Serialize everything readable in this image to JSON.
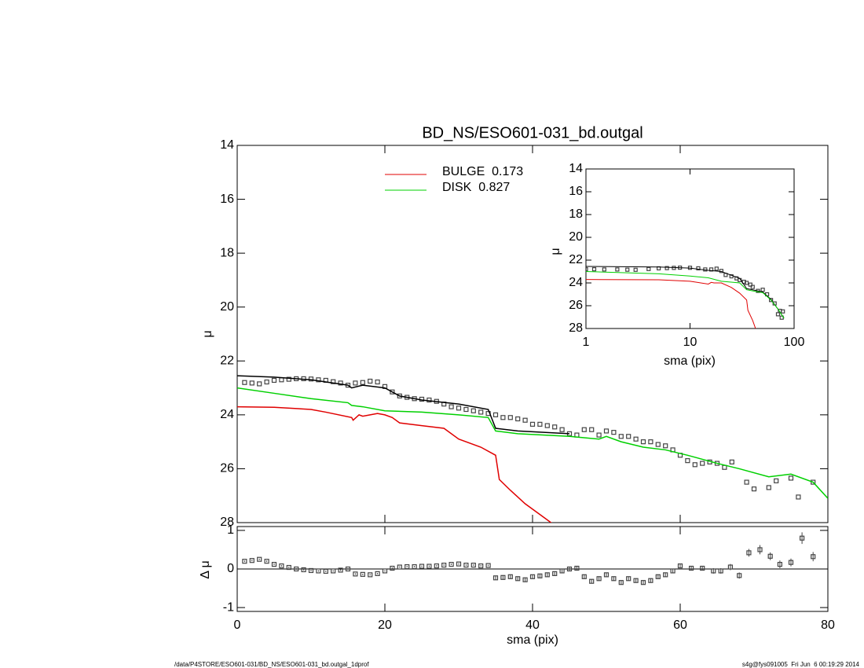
{
  "chart_data": [
    {
      "type": "line",
      "title": "BD_NS/ESO601-031_bd.outgal",
      "ylabel": "μ",
      "ylim": [
        28,
        14
      ],
      "yticks": [
        14,
        16,
        18,
        20,
        22,
        24,
        26,
        28
      ],
      "series": [
        {
          "style": "points",
          "color": "#444444",
          "x": [
            1,
            2,
            3,
            4,
            5,
            6,
            7,
            8,
            9,
            10,
            11,
            12,
            13,
            14,
            15,
            16,
            17,
            18,
            19,
            20,
            21,
            22,
            23,
            24,
            25,
            26,
            27,
            28,
            29,
            30,
            31,
            32,
            33,
            34,
            35,
            36,
            37,
            38,
            39,
            40,
            41,
            42,
            43,
            44,
            45,
            46,
            47,
            48,
            49,
            50,
            51,
            52,
            53,
            54,
            55,
            56,
            57,
            58,
            59,
            60,
            61,
            62,
            63,
            64,
            65,
            66,
            67,
            69,
            70,
            72,
            73,
            75,
            76,
            78
          ],
          "values": [
            22.8,
            22.82,
            22.85,
            22.78,
            22.72,
            22.7,
            22.68,
            22.66,
            22.66,
            22.67,
            22.7,
            22.72,
            22.77,
            22.82,
            22.9,
            22.82,
            22.8,
            22.75,
            22.78,
            22.95,
            23.15,
            23.3,
            23.35,
            23.4,
            23.42,
            23.45,
            23.5,
            23.6,
            23.7,
            23.75,
            23.8,
            23.85,
            23.9,
            23.95,
            24.0,
            24.1,
            24.1,
            24.15,
            24.2,
            24.35,
            24.35,
            24.4,
            24.45,
            24.55,
            24.7,
            24.75,
            24.55,
            24.55,
            24.75,
            24.6,
            24.65,
            24.8,
            24.8,
            24.9,
            25.0,
            25.0,
            25.1,
            25.15,
            25.3,
            25.5,
            25.7,
            25.85,
            25.8,
            25.75,
            25.8,
            25.95,
            25.75,
            26.5,
            26.75,
            26.7,
            26.45,
            26.35,
            27.05,
            26.5
          ]
        },
        {
          "style": "line",
          "color": "#000000",
          "x": [
            0,
            5,
            10,
            15,
            15.5,
            17,
            20,
            22,
            25,
            30,
            34,
            35,
            38,
            45
          ],
          "values": [
            22.55,
            22.6,
            22.7,
            22.9,
            23.0,
            22.9,
            23.0,
            23.3,
            23.45,
            23.6,
            23.8,
            24.5,
            24.6,
            24.7
          ]
        },
        {
          "style": "line",
          "color": "#e00000",
          "name": "BULGE  0.173",
          "x": [
            0,
            5,
            10,
            12,
            15.5,
            15.7,
            16.5,
            17,
            18,
            19,
            20,
            21,
            22,
            25,
            28,
            30,
            33,
            35,
            35.5,
            37,
            39,
            41.5,
            43
          ],
          "values": [
            23.7,
            23.72,
            23.8,
            23.9,
            24.1,
            24.2,
            24.0,
            24.05,
            24.0,
            23.95,
            24.0,
            24.1,
            24.3,
            24.4,
            24.5,
            24.9,
            25.2,
            25.5,
            26.4,
            26.8,
            27.3,
            27.8,
            28.1
          ]
        },
        {
          "style": "line",
          "color": "#00d000",
          "name": "DISK  0.827",
          "x": [
            0,
            5,
            10,
            15,
            15.5,
            17,
            20,
            25,
            30,
            34,
            35,
            38,
            45,
            49,
            50,
            52,
            55,
            58,
            61,
            65,
            68,
            72,
            75,
            78,
            80
          ],
          "values": [
            23.0,
            23.2,
            23.4,
            23.55,
            23.65,
            23.7,
            23.85,
            23.9,
            24.0,
            24.1,
            24.6,
            24.7,
            24.8,
            24.9,
            24.8,
            25.0,
            25.2,
            25.3,
            25.5,
            25.8,
            26.0,
            26.3,
            26.2,
            26.5,
            27.1
          ]
        }
      ]
    },
    {
      "type": "scatter",
      "xlabel": "sma (pix)",
      "ylabel": "Δ μ",
      "xlim": [
        0,
        80
      ],
      "xticks": [
        0,
        20,
        40,
        60,
        80
      ],
      "ylim": [
        -1.1,
        1.1
      ],
      "yticks": [
        -1,
        0,
        1
      ],
      "series": [
        {
          "style": "points",
          "color": "#444444",
          "x": [
            1,
            2,
            3,
            4,
            5,
            6,
            7,
            8,
            9,
            10,
            11,
            12,
            13,
            14,
            15,
            16,
            17,
            18,
            19,
            20,
            21,
            22,
            23,
            24,
            25,
            26,
            27,
            28,
            29,
            30,
            31,
            32,
            33,
            34,
            35,
            36,
            37,
            38,
            39,
            40,
            41,
            42,
            43,
            44,
            45,
            46,
            47,
            48,
            49,
            50,
            51,
            52,
            53,
            54,
            55,
            56,
            57,
            58,
            59,
            60,
            61.5,
            63,
            64.5,
            65.5,
            66.8,
            68,
            69.3,
            70.8,
            72.2,
            73.5,
            75,
            76.5,
            78
          ],
          "values": [
            0.2,
            0.22,
            0.25,
            0.2,
            0.12,
            0.08,
            0.04,
            0.0,
            -0.02,
            -0.04,
            -0.05,
            -0.06,
            -0.05,
            -0.03,
            0.0,
            -0.13,
            -0.14,
            -0.15,
            -0.12,
            -0.05,
            0.02,
            0.05,
            0.06,
            0.06,
            0.07,
            0.07,
            0.08,
            0.1,
            0.12,
            0.13,
            0.1,
            0.1,
            0.08,
            0.09,
            -0.23,
            -0.22,
            -0.2,
            -0.25,
            -0.28,
            -0.2,
            -0.18,
            -0.15,
            -0.12,
            -0.05,
            0.0,
            0.02,
            -0.2,
            -0.32,
            -0.25,
            -0.15,
            -0.25,
            -0.35,
            -0.25,
            -0.3,
            -0.35,
            -0.3,
            -0.2,
            -0.15,
            -0.05,
            0.08,
            0.02,
            0.02,
            -0.05,
            -0.05,
            0.05,
            -0.17,
            0.42,
            0.5,
            0.33,
            0.12,
            0.17,
            0.8,
            0.32
          ],
          "errors": [
            0.02,
            0.02,
            0.02,
            0.02,
            0.02,
            0.02,
            0.02,
            0.02,
            0.02,
            0.02,
            0.02,
            0.02,
            0.02,
            0.02,
            0.02,
            0.02,
            0.02,
            0.02,
            0.02,
            0.02,
            0.02,
            0.02,
            0.02,
            0.02,
            0.02,
            0.02,
            0.02,
            0.02,
            0.02,
            0.02,
            0.02,
            0.02,
            0.02,
            0.02,
            0.05,
            0.05,
            0.05,
            0.05,
            0.05,
            0.05,
            0.05,
            0.05,
            0.05,
            0.05,
            0.05,
            0.05,
            0.05,
            0.05,
            0.05,
            0.05,
            0.05,
            0.05,
            0.05,
            0.05,
            0.05,
            0.05,
            0.05,
            0.05,
            0.05,
            0.05,
            0.06,
            0.06,
            0.07,
            0.07,
            0.08,
            0.08,
            0.1,
            0.12,
            0.1,
            0.1,
            0.1,
            0.15,
            0.12
          ]
        }
      ]
    },
    {
      "type": "line",
      "xlabel": "sma (pix)",
      "ylabel": "μ",
      "xlog": true,
      "xlim": [
        1,
        100
      ],
      "xticks": [
        1,
        10,
        100
      ],
      "ylim": [
        28,
        14
      ],
      "yticks": [
        14,
        16,
        18,
        20,
        22,
        24,
        26,
        28
      ],
      "series": [
        {
          "style": "points",
          "color": "#444444",
          "x": [
            1,
            1.2,
            1.5,
            2,
            2.5,
            3,
            4,
            5,
            6,
            7,
            8,
            10,
            12,
            14,
            16,
            18,
            20,
            22,
            25,
            28,
            30,
            33,
            35,
            38,
            40,
            45,
            50,
            55,
            60,
            65,
            70,
            73,
            76,
            78
          ],
          "values": [
            22.8,
            22.8,
            22.82,
            22.82,
            22.84,
            22.85,
            22.78,
            22.72,
            22.7,
            22.68,
            22.66,
            22.67,
            22.72,
            22.82,
            22.82,
            22.75,
            22.95,
            23.3,
            23.42,
            23.6,
            23.75,
            23.9,
            24.0,
            24.15,
            24.35,
            24.7,
            24.6,
            25.0,
            25.5,
            25.8,
            26.75,
            26.45,
            27.05,
            26.5
          ]
        },
        {
          "style": "line",
          "color": "#000000",
          "x": [
            1,
            5,
            10,
            15,
            20,
            30,
            35,
            40,
            50,
            60,
            70,
            80
          ],
          "values": [
            22.55,
            22.6,
            22.7,
            22.9,
            23.0,
            23.6,
            24.5,
            24.6,
            24.8,
            25.45,
            26.3,
            27.1
          ]
        },
        {
          "style": "line",
          "color": "#e00000",
          "x": [
            1,
            5,
            10,
            15,
            16,
            17,
            20,
            25,
            30,
            35,
            36,
            40,
            43
          ],
          "values": [
            23.7,
            23.72,
            23.85,
            24.1,
            23.95,
            24.0,
            24.0,
            24.4,
            24.9,
            25.5,
            26.4,
            27.3,
            28.1
          ]
        },
        {
          "style": "line",
          "color": "#00d000",
          "x": [
            1,
            5,
            10,
            15,
            20,
            30,
            35,
            40,
            50,
            60,
            70,
            80
          ],
          "values": [
            23.0,
            23.2,
            23.4,
            23.55,
            23.85,
            24.0,
            24.6,
            24.7,
            24.85,
            25.5,
            26.3,
            27.1
          ]
        }
      ]
    }
  ],
  "footer": {
    "left": "/data/P4STORE/ESO601-031/BD_NS/ESO601-031_bd.outgal_1dprof",
    "right": "s4g@fys091005  Fri Jun  6 00:19:29 2014"
  }
}
